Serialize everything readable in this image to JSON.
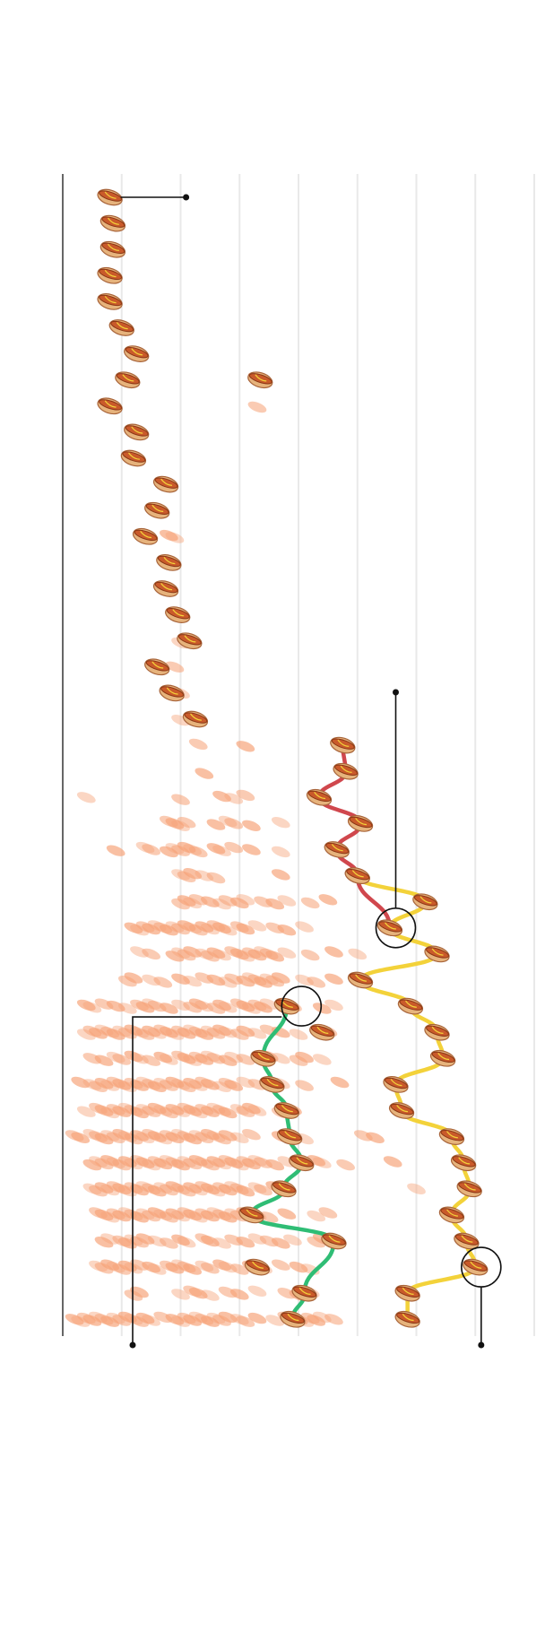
{
  "chart_data": {
    "type": "scatter",
    "title": "",
    "xlabel": "",
    "ylabel": "",
    "orientation": "vertical",
    "x_range_hot_dogs": [
      0,
      80
    ],
    "y_range_order": [
      0,
      44
    ],
    "grid": true,
    "colors": {
      "hotdog_bun": "#e6b37c",
      "hotdog_sausage": "#c95a2a",
      "ghost_dots": "#f6a37a",
      "series_red": "#d0474d",
      "series_yellow": "#f3d23a",
      "series_green": "#2fbd75"
    },
    "icons": {
      "marker": "hot-dog-icon"
    },
    "series": [
      {
        "key": "winners",
        "values": [
          {
            "x": 8.0,
            "y": 0
          },
          {
            "x": 8.5,
            "y": 1
          },
          {
            "x": 8.5,
            "y": 2
          },
          {
            "x": 8.0,
            "y": 3
          },
          {
            "x": 8.0,
            "y": 4
          },
          {
            "x": 10.0,
            "y": 5
          },
          {
            "x": 12.5,
            "y": 6
          },
          {
            "x": 11.0,
            "y": 7
          },
          {
            "x": 8.0,
            "y": 8
          },
          {
            "x": 12.5,
            "y": 9
          },
          {
            "x": 12.0,
            "y": 10
          },
          {
            "x": 17.5,
            "y": 11
          },
          {
            "x": 16.0,
            "y": 12
          },
          {
            "x": 14.0,
            "y": 13
          },
          {
            "x": 18.0,
            "y": 14
          },
          {
            "x": 17.5,
            "y": 15
          },
          {
            "x": 19.5,
            "y": 16
          },
          {
            "x": 21.5,
            "y": 17
          },
          {
            "x": 16.0,
            "y": 18
          },
          {
            "x": 18.5,
            "y": 19
          },
          {
            "x": 22.5,
            "y": 20
          }
        ]
      },
      {
        "key": "secondary_early",
        "values": [
          {
            "x": 33.5,
            "y": 7
          }
        ]
      },
      {
        "key": "red_series",
        "values": [
          {
            "x": 47.5,
            "y": 21
          },
          {
            "x": 48.0,
            "y": 22
          },
          {
            "x": 43.5,
            "y": 23
          },
          {
            "x": 50.5,
            "y": 24
          },
          {
            "x": 46.5,
            "y": 25
          },
          {
            "x": 50.0,
            "y": 26
          },
          {
            "x": 55.5,
            "y": 28
          }
        ]
      },
      {
        "key": "yellow_series",
        "values": [
          {
            "x": 50.0,
            "y": 26
          },
          {
            "x": 61.5,
            "y": 27
          },
          {
            "x": 55.5,
            "y": 28
          },
          {
            "x": 63.5,
            "y": 29
          },
          {
            "x": 50.5,
            "y": 30
          },
          {
            "x": 59.0,
            "y": 31
          },
          {
            "x": 63.5,
            "y": 32
          },
          {
            "x": 64.5,
            "y": 33
          },
          {
            "x": 56.5,
            "y": 34
          },
          {
            "x": 57.5,
            "y": 35
          },
          {
            "x": 66.0,
            "y": 36
          },
          {
            "x": 68.0,
            "y": 37
          },
          {
            "x": 69.0,
            "y": 38
          },
          {
            "x": 66.0,
            "y": 39
          },
          {
            "x": 68.5,
            "y": 40
          },
          {
            "x": 70.0,
            "y": 41
          },
          {
            "x": 58.5,
            "y": 42
          },
          {
            "x": 58.5,
            "y": 43
          }
        ]
      },
      {
        "key": "green_series",
        "values": [
          {
            "x": 38.0,
            "y": 31
          },
          {
            "x": 34.0,
            "y": 33
          },
          {
            "x": 35.5,
            "y": 34
          },
          {
            "x": 38.0,
            "y": 35
          },
          {
            "x": 38.5,
            "y": 36
          },
          {
            "x": 40.5,
            "y": 37
          },
          {
            "x": 37.5,
            "y": 38
          },
          {
            "x": 32.0,
            "y": 39
          },
          {
            "x": 46.0,
            "y": 40
          },
          {
            "x": 41.0,
            "y": 42
          },
          {
            "x": 39.0,
            "y": 43
          }
        ]
      },
      {
        "key": "other_highlights",
        "values": [
          {
            "x": 44.0,
            "y": 32
          },
          {
            "x": 33.0,
            "y": 41
          }
        ]
      }
    ],
    "field_spread_by_row": [
      {
        "y": 7,
        "values": [
          33
        ]
      },
      {
        "y": 8,
        "values": [
          33
        ]
      },
      {
        "y": 13,
        "values": [
          18,
          19
        ]
      },
      {
        "y": 17,
        "values": [
          20
        ]
      },
      {
        "y": 18,
        "values": [
          19
        ]
      },
      {
        "y": 19,
        "values": [
          19,
          20
        ]
      },
      {
        "y": 20,
        "values": [
          20
        ]
      },
      {
        "y": 21,
        "values": [
          23,
          31
        ]
      },
      {
        "y": 22,
        "values": [
          24
        ]
      },
      {
        "y": 23,
        "values": [
          4,
          20,
          27,
          29,
          31
        ]
      },
      {
        "y": 24,
        "values": [
          18,
          19,
          20,
          21,
          26,
          28,
          29,
          32,
          37
        ]
      },
      {
        "y": 25,
        "values": [
          9,
          14,
          15,
          18,
          19,
          20,
          21,
          22,
          23,
          26,
          27,
          29,
          32,
          37
        ]
      },
      {
        "y": 26,
        "values": [
          20,
          21,
          22,
          24,
          26,
          37
        ]
      },
      {
        "y": 27,
        "values": [
          20,
          21,
          22,
          23,
          25,
          27,
          28,
          30,
          31,
          34,
          36,
          38,
          42,
          45
        ]
      },
      {
        "y": 28,
        "values": [
          12,
          13,
          14,
          15,
          16,
          17,
          18,
          19,
          20,
          21,
          22,
          23,
          24,
          25,
          26,
          27,
          28,
          30,
          31,
          33,
          36,
          38,
          41
        ]
      },
      {
        "y": 29,
        "values": [
          13,
          15,
          19,
          20,
          21,
          22,
          24,
          25,
          26,
          27,
          29,
          30,
          31,
          32,
          33,
          34,
          35,
          36,
          38,
          42,
          46,
          50
        ]
      },
      {
        "y": 30,
        "values": [
          11,
          12,
          15,
          17,
          20,
          22,
          24,
          26,
          28,
          29,
          31,
          32,
          33,
          34,
          35,
          36,
          37,
          41,
          43,
          46,
          50
        ]
      },
      {
        "y": 31,
        "values": [
          4,
          5,
          7,
          9,
          11,
          13,
          14,
          15,
          16,
          18,
          20,
          22,
          23,
          24,
          26,
          27,
          28,
          30,
          31,
          32,
          33,
          34,
          35,
          39,
          44,
          46
        ]
      },
      {
        "y": 32,
        "values": [
          4,
          5,
          6,
          7,
          8,
          9,
          10,
          11,
          12,
          13,
          14,
          15,
          16,
          17,
          18,
          19,
          20,
          21,
          22,
          23,
          24,
          25,
          26,
          27,
          28,
          30,
          31,
          33,
          35,
          37,
          40,
          45
        ]
      },
      {
        "y": 33,
        "values": [
          5,
          7,
          9,
          10,
          12,
          13,
          15,
          17,
          18,
          20,
          21,
          22,
          23,
          24,
          25,
          26,
          28,
          29,
          31,
          35,
          37,
          40,
          41,
          44
        ]
      },
      {
        "y": 34,
        "values": [
          3,
          5,
          6,
          7,
          8,
          9,
          10,
          11,
          12,
          13,
          14,
          15,
          16,
          17,
          18,
          19,
          20,
          21,
          22,
          23,
          24,
          25,
          27,
          28,
          29,
          31,
          33,
          35,
          37,
          41,
          47
        ]
      },
      {
        "y": 35,
        "values": [
          4,
          6,
          7,
          8,
          9,
          10,
          11,
          12,
          13,
          14,
          15,
          16,
          17,
          18,
          19,
          20,
          21,
          22,
          23,
          24,
          25,
          26,
          27,
          28,
          30,
          31,
          32,
          33,
          37,
          39
        ]
      },
      {
        "y": 36,
        "values": [
          2,
          3,
          5,
          6,
          7,
          8,
          9,
          10,
          11,
          12,
          13,
          14,
          15,
          16,
          17,
          18,
          19,
          20,
          21,
          22,
          23,
          24,
          25,
          26,
          27,
          28,
          30,
          32,
          37,
          41,
          51,
          53
        ]
      },
      {
        "y": 37,
        "values": [
          5,
          6,
          7,
          8,
          9,
          10,
          11,
          12,
          13,
          14,
          15,
          16,
          17,
          18,
          19,
          20,
          21,
          22,
          23,
          24,
          25,
          26,
          27,
          28,
          29,
          30,
          31,
          32,
          33,
          34,
          36,
          38,
          41,
          43,
          44,
          48,
          56
        ]
      },
      {
        "y": 38,
        "values": [
          5,
          6,
          7,
          8,
          9,
          10,
          11,
          12,
          13,
          14,
          15,
          16,
          17,
          18,
          19,
          20,
          21,
          22,
          23,
          24,
          25,
          26,
          27,
          28,
          29,
          30,
          31,
          33,
          34,
          36,
          60
        ]
      },
      {
        "y": 39,
        "values": [
          6,
          7,
          8,
          9,
          10,
          11,
          12,
          13,
          14,
          15,
          16,
          17,
          18,
          19,
          20,
          21,
          22,
          23,
          24,
          25,
          26,
          27,
          28,
          29,
          30,
          31,
          33,
          35,
          38,
          43,
          45
        ]
      },
      {
        "y": 40,
        "values": [
          7,
          8,
          10,
          11,
          12,
          13,
          14,
          16,
          18,
          20,
          21,
          24,
          25,
          27,
          29,
          31,
          33,
          35,
          37,
          39,
          43,
          44
        ]
      },
      {
        "y": 41,
        "values": [
          6,
          7,
          8,
          9,
          10,
          11,
          12,
          13,
          15,
          16,
          18,
          19,
          20,
          21,
          22,
          24,
          25,
          27,
          28,
          30,
          32,
          34,
          37,
          40,
          42
        ]
      },
      {
        "y": 42,
        "values": [
          12,
          13,
          20,
          22,
          23,
          25,
          28,
          30,
          33,
          38,
          40,
          42
        ]
      },
      {
        "y": 43,
        "values": [
          2,
          3,
          4,
          5,
          6,
          7,
          8,
          9,
          10,
          11,
          12,
          13,
          14,
          15,
          17,
          19,
          20,
          21,
          22,
          23,
          24,
          25,
          26,
          27,
          28,
          30,
          31,
          33,
          36,
          38,
          40,
          41,
          42,
          43,
          44,
          46
        ]
      }
    ],
    "annotations": [
      {
        "shape": "leader-line",
        "target_x": 8.0,
        "target_y": 0
      },
      {
        "shape": "ring-with-leader",
        "target_x": 56.5,
        "target_y": 28
      },
      {
        "shape": "ring-with-leader",
        "target_x": 40.5,
        "target_y": 31
      },
      {
        "shape": "ring-with-leader",
        "target_x": 71.0,
        "target_y": 41
      }
    ]
  }
}
